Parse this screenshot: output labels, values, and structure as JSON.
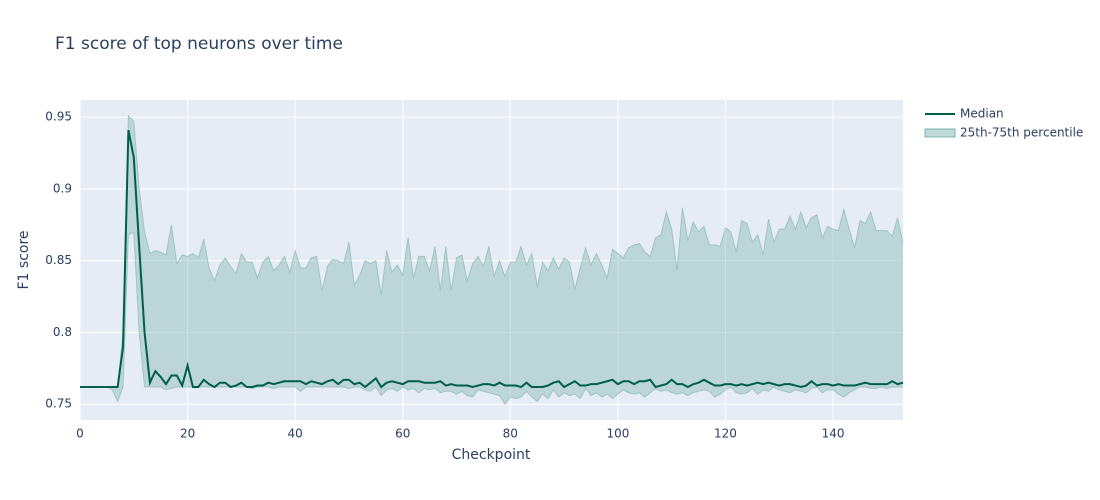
{
  "chart_data": {
    "type": "line",
    "title": "F1 score of top neurons over time",
    "xlabel": "Checkpoint",
    "ylabel": "F1 score",
    "xlim": [
      0,
      153
    ],
    "ylim": [
      0.739,
      0.962
    ],
    "xticks": [
      0,
      20,
      40,
      60,
      80,
      100,
      120,
      140
    ],
    "yticks": [
      0.75,
      0.8,
      0.85,
      0.9,
      0.95
    ],
    "grid": true,
    "legend": "right",
    "x": [
      0,
      1,
      2,
      3,
      4,
      5,
      6,
      7,
      8,
      9,
      10,
      11,
      12,
      13,
      14,
      15,
      16,
      17,
      18,
      19,
      20,
      21,
      22,
      23,
      24,
      25,
      26,
      27,
      28,
      29,
      30,
      31,
      32,
      33,
      34,
      35,
      36,
      37,
      38,
      39,
      40,
      41,
      42,
      43,
      44,
      45,
      46,
      47,
      48,
      49,
      50,
      51,
      52,
      53,
      54,
      55,
      56,
      57,
      58,
      59,
      60,
      61,
      62,
      63,
      64,
      65,
      66,
      67,
      68,
      69,
      70,
      71,
      72,
      73,
      74,
      75,
      76,
      77,
      78,
      79,
      80,
      81,
      82,
      83,
      84,
      85,
      86,
      87,
      88,
      89,
      90,
      91,
      92,
      93,
      94,
      95,
      96,
      97,
      98,
      99,
      100,
      101,
      102,
      103,
      104,
      105,
      106,
      107,
      108,
      109,
      110,
      111,
      112,
      113,
      114,
      115,
      116,
      117,
      118,
      119,
      120,
      121,
      122,
      123,
      124,
      125,
      126,
      127,
      128,
      129,
      130,
      131,
      132,
      133,
      134,
      135,
      136,
      137,
      138,
      139,
      140,
      141,
      142,
      143,
      144,
      145,
      146,
      147,
      148,
      149,
      150,
      151,
      152,
      153
    ],
    "series": [
      {
        "name": "Median",
        "color": "#005f4b",
        "values": [
          0.762,
          0.762,
          0.762,
          0.762,
          0.762,
          0.762,
          0.762,
          0.762,
          0.79,
          0.941,
          0.922,
          0.86,
          0.8,
          0.765,
          0.773,
          0.769,
          0.764,
          0.77,
          0.77,
          0.763,
          0.777,
          0.762,
          0.762,
          0.767,
          0.764,
          0.762,
          0.765,
          0.765,
          0.762,
          0.763,
          0.765,
          0.762,
          0.762,
          0.763,
          0.763,
          0.765,
          0.764,
          0.765,
          0.766,
          0.766,
          0.766,
          0.766,
          0.764,
          0.766,
          0.765,
          0.764,
          0.766,
          0.767,
          0.764,
          0.767,
          0.767,
          0.764,
          0.765,
          0.762,
          0.765,
          0.768,
          0.762,
          0.765,
          0.766,
          0.765,
          0.764,
          0.766,
          0.766,
          0.766,
          0.765,
          0.765,
          0.765,
          0.766,
          0.763,
          0.764,
          0.763,
          0.763,
          0.763,
          0.762,
          0.763,
          0.764,
          0.764,
          0.763,
          0.765,
          0.763,
          0.763,
          0.763,
          0.762,
          0.765,
          0.762,
          0.762,
          0.762,
          0.763,
          0.765,
          0.766,
          0.762,
          0.764,
          0.766,
          0.763,
          0.763,
          0.764,
          0.764,
          0.765,
          0.766,
          0.767,
          0.764,
          0.766,
          0.766,
          0.764,
          0.766,
          0.766,
          0.767,
          0.762,
          0.763,
          0.764,
          0.767,
          0.764,
          0.764,
          0.762,
          0.764,
          0.765,
          0.767,
          0.765,
          0.763,
          0.763,
          0.764,
          0.764,
          0.763,
          0.764,
          0.763,
          0.764,
          0.765,
          0.764,
          0.765,
          0.764,
          0.763,
          0.764,
          0.764,
          0.763,
          0.762,
          0.763,
          0.766,
          0.763,
          0.764,
          0.764,
          0.763,
          0.764,
          0.763,
          0.763,
          0.763,
          0.764,
          0.765,
          0.764,
          0.764,
          0.764,
          0.764,
          0.766,
          0.764,
          0.765
        ]
      },
      {
        "name": "25th-75th percentile",
        "color": "#7fb3ad",
        "upper": [
          0.762,
          0.762,
          0.762,
          0.762,
          0.762,
          0.762,
          0.762,
          0.762,
          0.8,
          0.951,
          0.947,
          0.9,
          0.87,
          0.855,
          0.857,
          0.856,
          0.854,
          0.875,
          0.848,
          0.854,
          0.853,
          0.855,
          0.852,
          0.865,
          0.845,
          0.836,
          0.847,
          0.852,
          0.846,
          0.841,
          0.855,
          0.849,
          0.849,
          0.838,
          0.849,
          0.853,
          0.843,
          0.847,
          0.853,
          0.842,
          0.857,
          0.845,
          0.845,
          0.852,
          0.853,
          0.829,
          0.846,
          0.851,
          0.85,
          0.848,
          0.863,
          0.833,
          0.84,
          0.85,
          0.848,
          0.85,
          0.826,
          0.857,
          0.842,
          0.847,
          0.84,
          0.866,
          0.838,
          0.853,
          0.853,
          0.843,
          0.86,
          0.829,
          0.86,
          0.829,
          0.852,
          0.854,
          0.836,
          0.848,
          0.853,
          0.846,
          0.86,
          0.839,
          0.85,
          0.839,
          0.849,
          0.849,
          0.86,
          0.847,
          0.855,
          0.832,
          0.849,
          0.843,
          0.852,
          0.844,
          0.852,
          0.849,
          0.83,
          0.845,
          0.859,
          0.847,
          0.855,
          0.847,
          0.838,
          0.858,
          0.855,
          0.852,
          0.859,
          0.861,
          0.862,
          0.856,
          0.853,
          0.866,
          0.868,
          0.884,
          0.872,
          0.843,
          0.887,
          0.864,
          0.877,
          0.87,
          0.874,
          0.861,
          0.861,
          0.86,
          0.873,
          0.87,
          0.856,
          0.878,
          0.876,
          0.863,
          0.868,
          0.854,
          0.879,
          0.863,
          0.872,
          0.872,
          0.881,
          0.872,
          0.884,
          0.873,
          0.88,
          0.882,
          0.866,
          0.874,
          0.872,
          0.871,
          0.886,
          0.872,
          0.859,
          0.878,
          0.876,
          0.884,
          0.871,
          0.871,
          0.871,
          0.867,
          0.88,
          0.862
        ],
        "lower": [
          0.762,
          0.762,
          0.762,
          0.762,
          0.762,
          0.762,
          0.76,
          0.752,
          0.762,
          0.868,
          0.87,
          0.8,
          0.762,
          0.762,
          0.762,
          0.762,
          0.76,
          0.761,
          0.762,
          0.762,
          0.762,
          0.762,
          0.762,
          0.762,
          0.762,
          0.762,
          0.762,
          0.762,
          0.762,
          0.762,
          0.762,
          0.762,
          0.761,
          0.762,
          0.762,
          0.762,
          0.761,
          0.762,
          0.762,
          0.762,
          0.762,
          0.759,
          0.762,
          0.762,
          0.762,
          0.762,
          0.762,
          0.762,
          0.762,
          0.762,
          0.761,
          0.762,
          0.762,
          0.76,
          0.759,
          0.762,
          0.756,
          0.76,
          0.761,
          0.759,
          0.762,
          0.76,
          0.761,
          0.758,
          0.761,
          0.76,
          0.761,
          0.758,
          0.759,
          0.759,
          0.757,
          0.759,
          0.756,
          0.755,
          0.76,
          0.759,
          0.758,
          0.757,
          0.756,
          0.75,
          0.755,
          0.754,
          0.755,
          0.759,
          0.755,
          0.752,
          0.757,
          0.754,
          0.76,
          0.755,
          0.758,
          0.756,
          0.757,
          0.754,
          0.761,
          0.756,
          0.758,
          0.755,
          0.757,
          0.754,
          0.757,
          0.76,
          0.758,
          0.757,
          0.758,
          0.755,
          0.758,
          0.761,
          0.759,
          0.76,
          0.758,
          0.757,
          0.758,
          0.756,
          0.758,
          0.759,
          0.76,
          0.759,
          0.755,
          0.757,
          0.76,
          0.762,
          0.758,
          0.757,
          0.758,
          0.761,
          0.757,
          0.76,
          0.759,
          0.762,
          0.76,
          0.759,
          0.758,
          0.76,
          0.759,
          0.758,
          0.761,
          0.762,
          0.758,
          0.76,
          0.76,
          0.757,
          0.755,
          0.758,
          0.76,
          0.762,
          0.762,
          0.761,
          0.761,
          0.762,
          0.761,
          0.762,
          0.762,
          0.762
        ]
      }
    ]
  }
}
